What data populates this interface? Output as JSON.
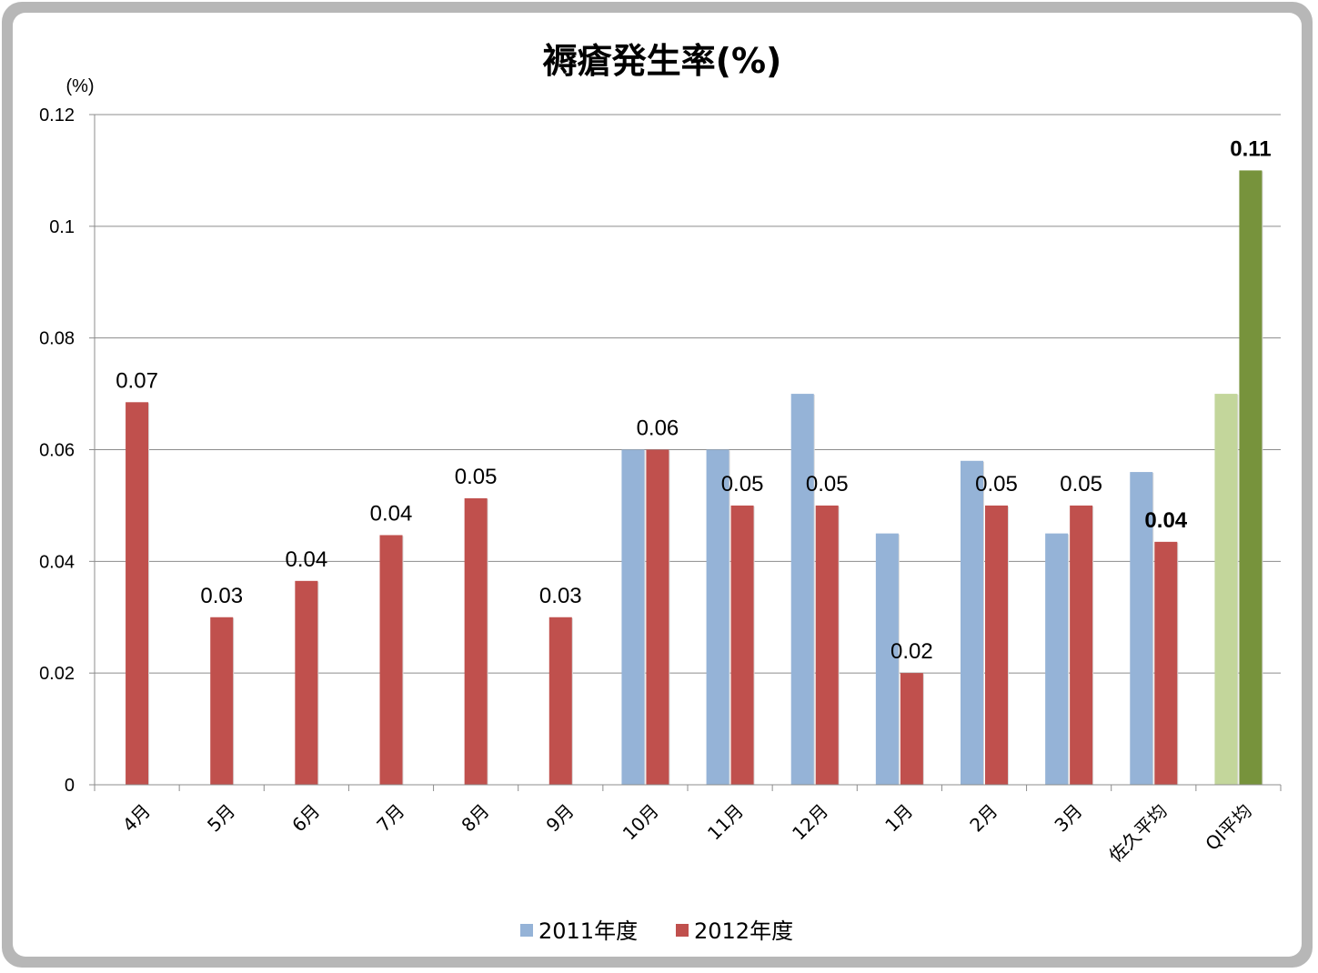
{
  "chart_data": {
    "type": "bar",
    "title": "褥瘡発生率(%)",
    "y_unit_label": "(%)",
    "ylim": [
      0,
      0.12
    ],
    "y_ticks": [
      "0",
      "0.02",
      "0.04",
      "0.06",
      "0.08",
      "0.1",
      "0.12"
    ],
    "y_tick_values": [
      0,
      0.02,
      0.04,
      0.06,
      0.08,
      0.1,
      0.12
    ],
    "categories": [
      "4月",
      "5月",
      "6月",
      "7月",
      "8月",
      "9月",
      "10月",
      "11月",
      "12月",
      "1月",
      "2月",
      "3月",
      "佐久平均",
      "QI平均"
    ],
    "series": [
      {
        "name": "2011年度",
        "color": "#95b3d7",
        "values": [
          null,
          null,
          null,
          null,
          null,
          null,
          0.06,
          0.06,
          0.07,
          0.045,
          0.058,
          0.045,
          0.056,
          0.07
        ]
      },
      {
        "name": "2012年度",
        "color": "#c0504d",
        "values": [
          0.0685,
          0.03,
          0.0365,
          0.0447,
          0.0513,
          0.03,
          0.06,
          0.05,
          0.05,
          0.02,
          0.05,
          0.05,
          0.0435,
          0.11
        ]
      }
    ],
    "special_colors": {
      "qi_2011": "#c3d69b",
      "qi_2012": "#77933c",
      "highlight_label": "#ff0000"
    },
    "data_labels": [
      {
        "category_index": 0,
        "text": "0.07",
        "highlight": false
      },
      {
        "category_index": 1,
        "text": "0.03",
        "highlight": false
      },
      {
        "category_index": 2,
        "text": "0.04",
        "highlight": false
      },
      {
        "category_index": 3,
        "text": "0.04",
        "highlight": false
      },
      {
        "category_index": 4,
        "text": "0.05",
        "highlight": false
      },
      {
        "category_index": 5,
        "text": "0.03",
        "highlight": false
      },
      {
        "category_index": 6,
        "text": "0.06",
        "highlight": false
      },
      {
        "category_index": 7,
        "text": "0.05",
        "highlight": false
      },
      {
        "category_index": 8,
        "text": "0.05",
        "highlight": false
      },
      {
        "category_index": 9,
        "text": "0.02",
        "highlight": false
      },
      {
        "category_index": 10,
        "text": "0.05",
        "highlight": false
      },
      {
        "category_index": 11,
        "text": "0.05",
        "highlight": false
      },
      {
        "category_index": 12,
        "text": "0.04",
        "highlight": true
      },
      {
        "category_index": 13,
        "text": "0.11",
        "highlight": true
      }
    ],
    "legend": [
      "2011年度",
      "2012年度"
    ],
    "legend_position": "bottom",
    "grid": true
  }
}
